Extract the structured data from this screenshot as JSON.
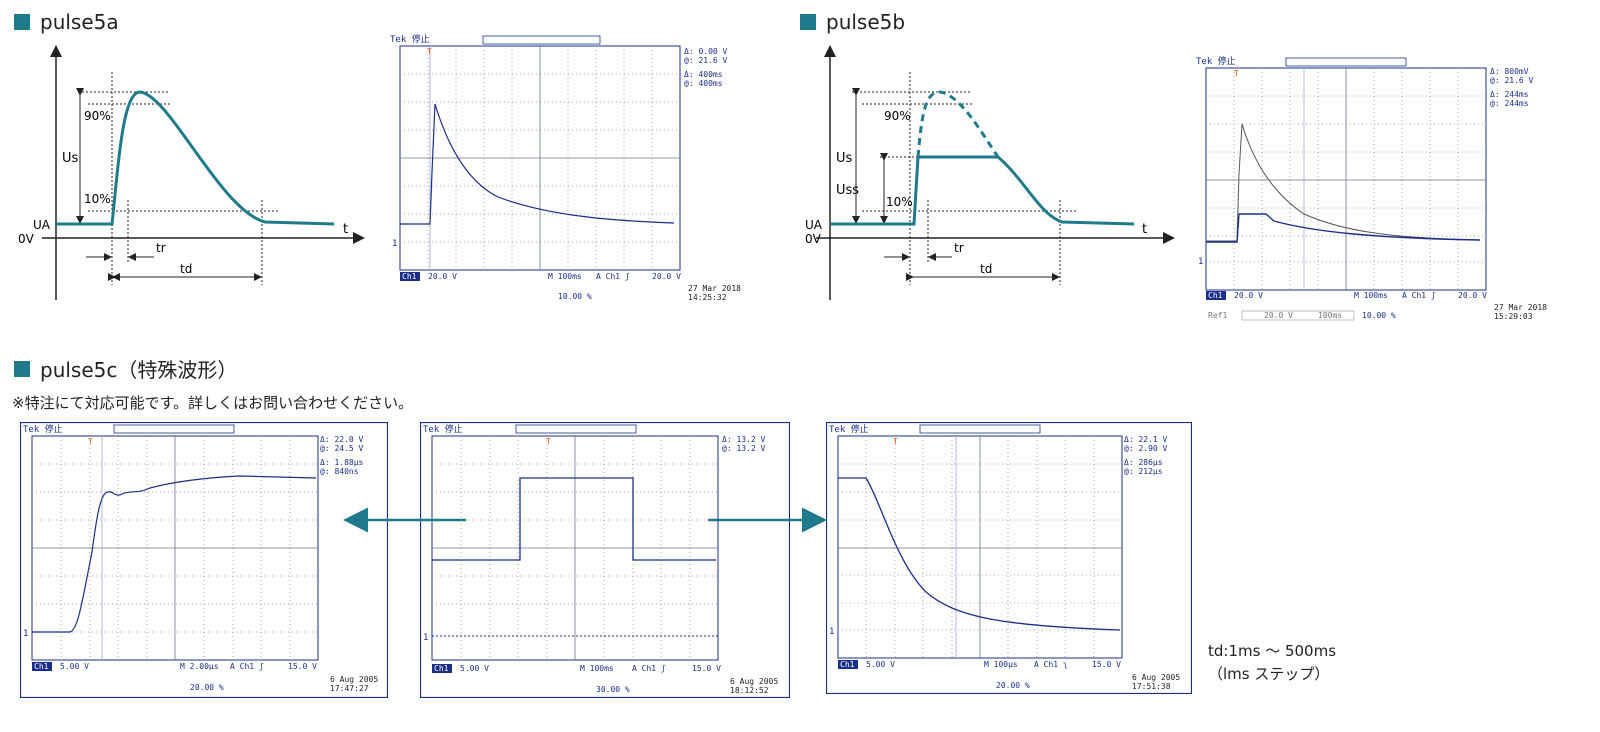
{
  "colors": {
    "teal": "#1f7a8c",
    "scope_blue": "#1b2f8a",
    "grid": "#8a8fa8"
  },
  "sections": {
    "a": {
      "title": "pulse5a"
    },
    "b": {
      "title": "pulse5b"
    },
    "c": {
      "title": "pulse5c（特殊波形）"
    }
  },
  "note": "※特注にて対応可能です。詳しくはお問い合わせください。",
  "td_note": {
    "line1": "td:1ms 〜 500ms",
    "line2": "（lms ステップ）"
  },
  "diagram_labels": {
    "us": "Us",
    "uss": "Uss",
    "p90": "90%",
    "p10": "10%",
    "ua": "UA",
    "ov": "0V",
    "t": "t",
    "tr": "tr",
    "td": "td"
  },
  "scope_a": {
    "header": "Tek 停止",
    "trig_marker": "T",
    "delta_v": "Δ:   0.00 V",
    "at_v": "@:  21.6 V",
    "delta_t": "Δ:   400ms",
    "at_t": "@:   400ms",
    "ch": "Ch1",
    "volts": "20.0 V",
    "timebase": "M 100ms",
    "trig_src": "A  Ch1 ʃ",
    "trig_lvl": "20.0 V",
    "pos": "10.00 %",
    "date": "27 Mar  2018",
    "time": "14:25:32",
    "ch_marker": "1"
  },
  "scope_b": {
    "header": "Tek 停止",
    "trig_marker": "T",
    "delta_v": "Δ:   800mV",
    "at_v": "@:  21.6 V",
    "delta_t": "Δ:   244ms",
    "at_t": "@:   244ms",
    "ch": "Ch1",
    "volts": "20.0 V",
    "timebase": "M 100ms",
    "trig_src": "A  Ch1 ʃ",
    "trig_lvl": "20.0 V",
    "ref": "Ref1",
    "ref_volts": "20.0 V",
    "ref_time": "100ms",
    "pos": "10.00 %",
    "date": "27 Mar  2018",
    "time": "15:29:03",
    "ch_marker": "1"
  },
  "scope_c1": {
    "header": "Tek 停止",
    "trig_marker": "T",
    "delta_v": "Δ:  22.0 V",
    "at_v": "@:  24.5 V",
    "delta_t": "Δ:  1.88μs",
    "at_t": "@:   840ns",
    "ch": "Ch1",
    "volts": "5.00 V",
    "timebase": "M 2.00μs",
    "trig_src": "A  Ch1 ʃ",
    "trig_lvl": "15.0 V",
    "pos": "20.00 %",
    "date": "6 Aug 2005",
    "time": "17:47:27",
    "ch_marker": "1"
  },
  "scope_c2": {
    "header": "Tek 停止",
    "trig_marker": "T",
    "delta_v": "Δ:  13.2 V",
    "at_v": "@:  13.2 V",
    "ch": "Ch1",
    "volts": "5.00 V",
    "timebase": "M 100ms",
    "trig_src": "A  Ch1 ʃ",
    "trig_lvl": "15.0 V",
    "pos": "30.00 %",
    "date": "6 Aug 2005",
    "time": "18:12:52",
    "ch_marker": "1"
  },
  "scope_c3": {
    "header": "Tek 停止",
    "trig_marker": "T",
    "delta_v": "Δ:  22.1 V",
    "at_v": "@:  2.90 V",
    "delta_t": "Δ:   286μs",
    "at_t": "@:   212μs",
    "ch": "Ch1",
    "volts": "5.00 V",
    "timebase": "M 100μs",
    "trig_src": "A  Ch1 ʅ",
    "trig_lvl": "15.0 V",
    "pos": "20.00 %",
    "date": "6 Aug 2005",
    "time": "17:51:38",
    "ch_marker": "1"
  }
}
